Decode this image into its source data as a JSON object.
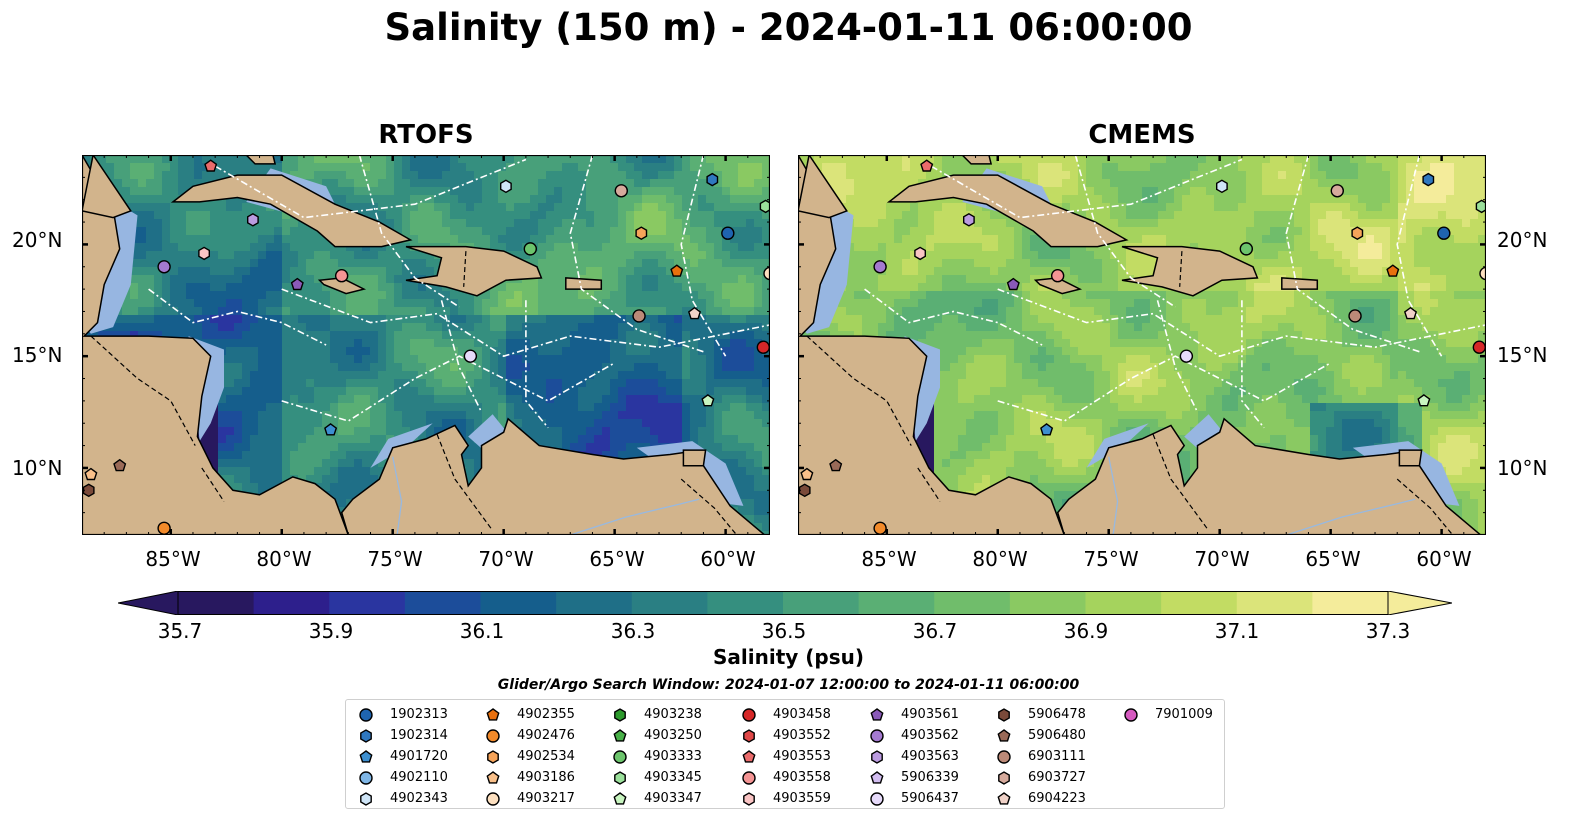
{
  "title": "Salinity (150 m) - 2024-01-11 06:00:00",
  "panels": [
    {
      "title": "RTOFS",
      "palette": "rtofs"
    },
    {
      "title": "CMEMS",
      "palette": "cmems"
    }
  ],
  "map_extent": {
    "lon": [
      -89,
      -58
    ],
    "lat": [
      7,
      24
    ]
  },
  "lat_ticks": [
    "20°N",
    "15°N",
    "10°N"
  ],
  "lat_values": [
    20,
    15,
    10
  ],
  "lon_ticks": [
    "85°W",
    "80°W",
    "75°W",
    "70°W",
    "65°W",
    "60°W"
  ],
  "lon_values": [
    -85,
    -80,
    -75,
    -70,
    -65,
    -60
  ],
  "colorbar": {
    "label": "Salinity (psu)",
    "min": 35.7,
    "max": 37.3,
    "ticks": [
      "35.7",
      "35.9",
      "36.1",
      "36.3",
      "36.5",
      "36.7",
      "36.9",
      "37.1",
      "37.3"
    ],
    "extend": "both"
  },
  "colors": {
    "land": "#d2b48c",
    "shelf_water": "#97b6e1",
    "colormap": [
      "#28185f",
      "#2d1f8c",
      "#2a35a0",
      "#1c4d9a",
      "#155e8c",
      "#1f6f87",
      "#2a7f83",
      "#358f7f",
      "#48a07a",
      "#5aaf74",
      "#70bd6b",
      "#8ac962",
      "#a5d35d",
      "#c2dc63",
      "#dbe47a",
      "#f4ec9b"
    ]
  },
  "search_window": "Glider/Argo Search Window: 2024-01-07 12:00:00 to 2024-01-11 06:00:00",
  "legend": [
    {
      "id": "1902313",
      "marker": "circle",
      "color": "#1f64b0"
    },
    {
      "id": "1902314",
      "marker": "hexagon",
      "color": "#2f78c0"
    },
    {
      "id": "4901720",
      "marker": "pentagon",
      "color": "#3d8fd0"
    },
    {
      "id": "4902110",
      "marker": "circle",
      "color": "#7fb6e6"
    },
    {
      "id": "4902343",
      "marker": "hexagon",
      "color": "#cfe5f7"
    },
    {
      "id": "4902355",
      "marker": "pentagon",
      "color": "#e8700e"
    },
    {
      "id": "4902476",
      "marker": "circle",
      "color": "#f28a2a"
    },
    {
      "id": "4902534",
      "marker": "hexagon",
      "color": "#f6a45a"
    },
    {
      "id": "4903186",
      "marker": "pentagon",
      "color": "#f9c08a"
    },
    {
      "id": "4903217",
      "marker": "circle",
      "color": "#fde0c0"
    },
    {
      "id": "4903238",
      "marker": "hexagon",
      "color": "#2c9a2c"
    },
    {
      "id": "4903250",
      "marker": "pentagon",
      "color": "#48b048"
    },
    {
      "id": "4903333",
      "marker": "circle",
      "color": "#6cc46c"
    },
    {
      "id": "4903345",
      "marker": "hexagon",
      "color": "#9be09b"
    },
    {
      "id": "4903347",
      "marker": "pentagon",
      "color": "#c8f5c0"
    },
    {
      "id": "4903458",
      "marker": "circle",
      "color": "#d62728"
    },
    {
      "id": "4903552",
      "marker": "hexagon",
      "color": "#e04848"
    },
    {
      "id": "4903553",
      "marker": "pentagon",
      "color": "#ea6b6b"
    },
    {
      "id": "4903558",
      "marker": "circle",
      "color": "#f49494"
    },
    {
      "id": "4903559",
      "marker": "hexagon",
      "color": "#fac4c4"
    },
    {
      "id": "4903561",
      "marker": "pentagon",
      "color": "#8a5ab8"
    },
    {
      "id": "4903562",
      "marker": "circle",
      "color": "#a47ad0"
    },
    {
      "id": "4903563",
      "marker": "hexagon",
      "color": "#bb9be0"
    },
    {
      "id": "5906339",
      "marker": "pentagon",
      "color": "#d2bdf0"
    },
    {
      "id": "5906437",
      "marker": "circle",
      "color": "#e6dafa"
    },
    {
      "id": "5906478",
      "marker": "hexagon",
      "color": "#7a4a3a"
    },
    {
      "id": "5906480",
      "marker": "pentagon",
      "color": "#9a6a58"
    },
    {
      "id": "6903111",
      "marker": "circle",
      "color": "#bc8a78"
    },
    {
      "id": "6903727",
      "marker": "hexagon",
      "color": "#d6aa9c"
    },
    {
      "id": "6904223",
      "marker": "pentagon",
      "color": "#f0d2c8"
    },
    {
      "id": "7901009",
      "marker": "circle",
      "color": "#d65ac0"
    }
  ],
  "floats_on_map": [
    {
      "lon": -85.3,
      "lat": 19.0,
      "marker": "circle",
      "color": "#a47ad0"
    },
    {
      "lon": -83.5,
      "lat": 19.6,
      "marker": "hexagon",
      "color": "#fac4c4"
    },
    {
      "lon": -83.2,
      "lat": 23.5,
      "marker": "pentagon",
      "color": "#ea6b6b"
    },
    {
      "lon": -81.3,
      "lat": 21.1,
      "marker": "hexagon",
      "color": "#bb9be0"
    },
    {
      "lon": -79.3,
      "lat": 18.2,
      "marker": "pentagon",
      "color": "#8a5ab8"
    },
    {
      "lon": -77.3,
      "lat": 18.6,
      "marker": "circle",
      "color": "#f49494"
    },
    {
      "lon": -77.8,
      "lat": 11.7,
      "marker": "pentagon",
      "color": "#3d8fd0"
    },
    {
      "lon": -71.5,
      "lat": 15.0,
      "marker": "circle",
      "color": "#e6dafa"
    },
    {
      "lon": -69.9,
      "lat": 22.6,
      "marker": "hexagon",
      "color": "#cfe5f7"
    },
    {
      "lon": -68.8,
      "lat": 19.8,
      "marker": "circle",
      "color": "#6cc46c"
    },
    {
      "lon": -64.7,
      "lat": 22.4,
      "marker": "circle",
      "color": "#d6aa9c"
    },
    {
      "lon": -63.8,
      "lat": 20.5,
      "marker": "hexagon",
      "color": "#f6a45a"
    },
    {
      "lon": -63.9,
      "lat": 16.8,
      "marker": "circle",
      "color": "#bc8a78"
    },
    {
      "lon": -62.2,
      "lat": 18.8,
      "marker": "pentagon",
      "color": "#e8700e"
    },
    {
      "lon": -61.4,
      "lat": 16.9,
      "marker": "pentagon",
      "color": "#f0d2c8"
    },
    {
      "lon": -60.6,
      "lat": 22.9,
      "marker": "hexagon",
      "color": "#2f78c0"
    },
    {
      "lon": -59.9,
      "lat": 20.5,
      "marker": "circle",
      "color": "#1f64b0"
    },
    {
      "lon": -58.2,
      "lat": 21.7,
      "marker": "hexagon",
      "color": "#9be09b"
    },
    {
      "lon": -58.0,
      "lat": 18.7,
      "marker": "circle",
      "color": "#fde0c0"
    },
    {
      "lon": -58.3,
      "lat": 15.4,
      "marker": "circle",
      "color": "#d62728"
    },
    {
      "lon": -60.8,
      "lat": 13.0,
      "marker": "pentagon",
      "color": "#c8f5c0"
    },
    {
      "lon": -88.6,
      "lat": 9.7,
      "marker": "pentagon",
      "color": "#f9c08a"
    },
    {
      "lon": -88.7,
      "lat": 9.0,
      "marker": "hexagon",
      "color": "#7a4a3a"
    },
    {
      "lon": -87.3,
      "lat": 10.1,
      "marker": "pentagon",
      "color": "#9a6a58"
    },
    {
      "lon": -85.3,
      "lat": 7.3,
      "marker": "circle",
      "color": "#f28a2a"
    }
  ]
}
